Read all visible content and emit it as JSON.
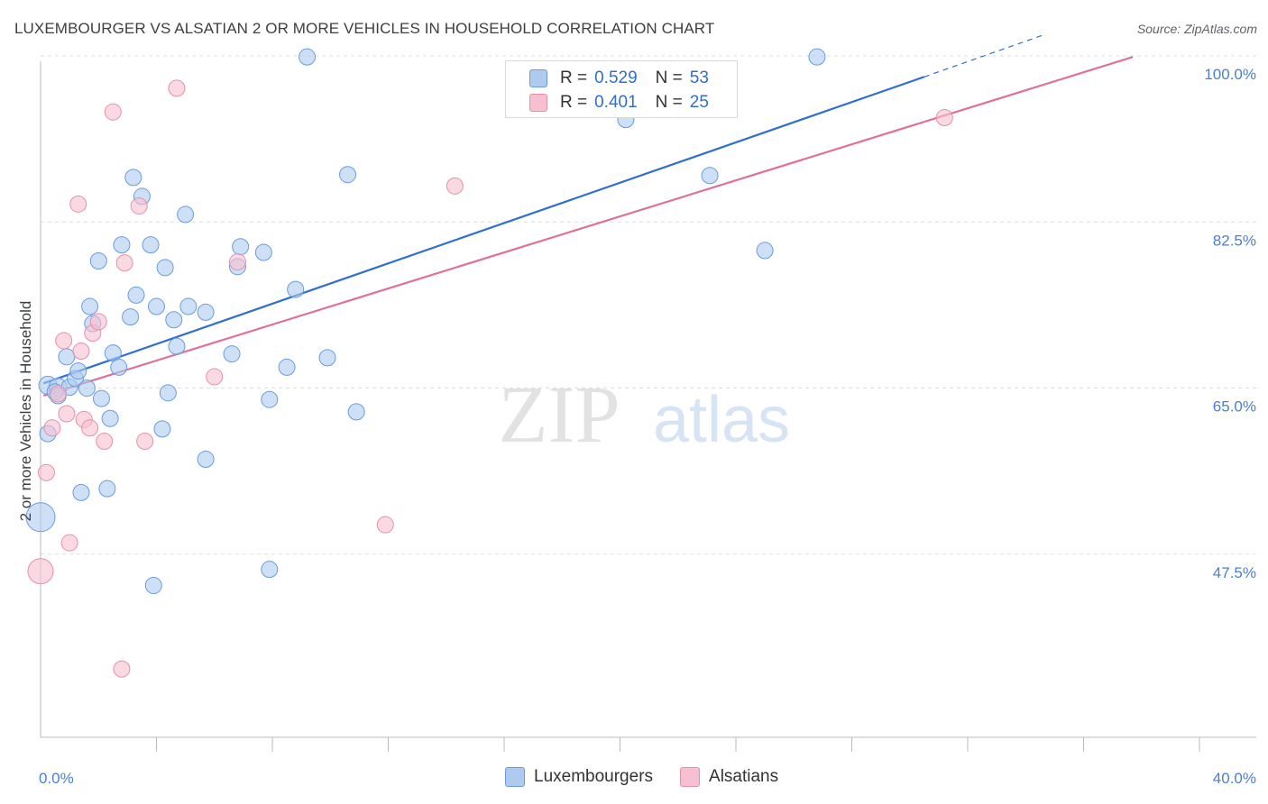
{
  "header": {
    "title": "LUXEMBOURGER VS ALSATIAN 2 OR MORE VEHICLES IN HOUSEHOLD CORRELATION CHART",
    "source": "Source: ZipAtlas.com"
  },
  "legend": {
    "rows": [
      {
        "r_label": "R =",
        "r_value": "0.529",
        "n_label": "N =",
        "n_value": "53"
      },
      {
        "r_label": "R =",
        "r_value": "0.401",
        "n_label": "N =",
        "n_value": "25"
      }
    ],
    "bottom": [
      "Luxembourgers",
      "Alsatians"
    ]
  },
  "watermark": {
    "zip": "ZIP",
    "atlas": "atlas"
  },
  "colors": {
    "blue_fill": "#aecbef",
    "blue_stroke": "#6a9be0",
    "blue_line": "#2f6fd0",
    "pink_fill": "#f8bfd0",
    "pink_stroke": "#e590aa",
    "pink_line": "#e0709a",
    "axis_text": "#4a7fd1",
    "grid": "#dddddd"
  },
  "chart_data": {
    "type": "scatter",
    "title": "LUXEMBOURGER VS ALSATIAN 2 OR MORE VEHICLES IN HOUSEHOLD CORRELATION CHART",
    "xlabel": "",
    "ylabel": "2 or more Vehicles in Household",
    "xlim": [
      0,
      40
    ],
    "ylim": [
      30,
      102
    ],
    "x_tick_labels": [
      "0.0%",
      "40.0%"
    ],
    "y_ticks": [
      47.5,
      65.0,
      82.5,
      100.0
    ],
    "y_tick_labels": [
      "47.5%",
      "65.0%",
      "82.5%",
      "100.0%"
    ],
    "grid": true,
    "legend_position": "top-center",
    "series": [
      {
        "name": "Luxembourgers",
        "color": "#6a9be0",
        "r": 0.529,
        "n": 53,
        "trend": {
          "x": [
            0.1,
            30.5
          ],
          "y": [
            67.3,
            99.6
          ],
          "dashed_to": [
            34.6,
            104.0
          ]
        },
        "points": [
          {
            "x": 0.25,
            "y": 67.1,
            "s": 10
          },
          {
            "x": 0.6,
            "y": 66.9,
            "s": 10
          },
          {
            "x": 0.9,
            "y": 70.1,
            "s": 9
          },
          {
            "x": 0.5,
            "y": 66.4,
            "s": 9
          },
          {
            "x": 1.0,
            "y": 66.9,
            "s": 9
          },
          {
            "x": 1.2,
            "y": 67.8,
            "s": 9
          },
          {
            "x": 1.3,
            "y": 68.6,
            "s": 9
          },
          {
            "x": 1.6,
            "y": 66.8,
            "s": 9
          },
          {
            "x": 1.7,
            "y": 75.4,
            "s": 9
          },
          {
            "x": 1.8,
            "y": 73.6,
            "s": 9
          },
          {
            "x": 2.0,
            "y": 80.2,
            "s": 9
          },
          {
            "x": 2.1,
            "y": 65.7,
            "s": 9
          },
          {
            "x": 2.4,
            "y": 63.6,
            "s": 9
          },
          {
            "x": 2.5,
            "y": 70.5,
            "s": 9
          },
          {
            "x": 2.7,
            "y": 69.0,
            "s": 9
          },
          {
            "x": 2.8,
            "y": 81.9,
            "s": 9
          },
          {
            "x": 3.1,
            "y": 74.3,
            "s": 9
          },
          {
            "x": 3.2,
            "y": 89.0,
            "s": 9
          },
          {
            "x": 3.3,
            "y": 76.6,
            "s": 9
          },
          {
            "x": 3.5,
            "y": 87.0,
            "s": 9
          },
          {
            "x": 3.8,
            "y": 81.9,
            "s": 9
          },
          {
            "x": 4.0,
            "y": 75.4,
            "s": 9
          },
          {
            "x": 4.2,
            "y": 62.5,
            "s": 9
          },
          {
            "x": 4.3,
            "y": 79.5,
            "s": 9
          },
          {
            "x": 4.4,
            "y": 66.3,
            "s": 9
          },
          {
            "x": 4.6,
            "y": 74.0,
            "s": 9
          },
          {
            "x": 4.7,
            "y": 71.2,
            "s": 9
          },
          {
            "x": 5.0,
            "y": 85.1,
            "s": 9
          },
          {
            "x": 5.1,
            "y": 75.4,
            "s": 9
          },
          {
            "x": 5.7,
            "y": 74.8,
            "s": 9
          },
          {
            "x": 5.7,
            "y": 59.3,
            "s": 9
          },
          {
            "x": 6.6,
            "y": 70.4,
            "s": 9
          },
          {
            "x": 6.8,
            "y": 79.6,
            "s": 9
          },
          {
            "x": 6.9,
            "y": 81.7,
            "s": 9
          },
          {
            "x": 7.7,
            "y": 81.1,
            "s": 9
          },
          {
            "x": 7.9,
            "y": 65.6,
            "s": 9
          },
          {
            "x": 8.5,
            "y": 69.0,
            "s": 9
          },
          {
            "x": 8.8,
            "y": 77.2,
            "s": 9
          },
          {
            "x": 9.2,
            "y": 101.7,
            "s": 9
          },
          {
            "x": 9.9,
            "y": 70.0,
            "s": 9
          },
          {
            "x": 10.6,
            "y": 89.3,
            "s": 9
          },
          {
            "x": 10.9,
            "y": 64.3,
            "s": 9
          },
          {
            "x": 1.4,
            "y": 55.8,
            "s": 9
          },
          {
            "x": 2.3,
            "y": 56.2,
            "s": 9
          },
          {
            "x": 3.9,
            "y": 46.0,
            "s": 9
          },
          {
            "x": 7.9,
            "y": 47.7,
            "s": 9
          },
          {
            "x": 0.25,
            "y": 62.0,
            "s": 9
          },
          {
            "x": 20.2,
            "y": 95.1,
            "s": 9
          },
          {
            "x": 23.1,
            "y": 89.2,
            "s": 9
          },
          {
            "x": 25.0,
            "y": 81.3,
            "s": 9
          },
          {
            "x": 26.8,
            "y": 101.7,
            "s": 9
          },
          {
            "x": 0.0,
            "y": 53.2,
            "s": 16
          },
          {
            "x": 0.6,
            "y": 66.0,
            "s": 9
          }
        ]
      },
      {
        "name": "Alsatians",
        "color": "#e590aa",
        "r": 0.401,
        "n": 25,
        "trend": {
          "x": [
            0.1,
            37.7
          ],
          "y": [
            66.0,
            101.7
          ]
        },
        "points": [
          {
            "x": 0.2,
            "y": 57.9,
            "s": 9
          },
          {
            "x": 0.4,
            "y": 62.6,
            "s": 9
          },
          {
            "x": 0.6,
            "y": 66.2,
            "s": 9
          },
          {
            "x": 0.8,
            "y": 71.8,
            "s": 9
          },
          {
            "x": 0.9,
            "y": 64.1,
            "s": 9
          },
          {
            "x": 1.0,
            "y": 50.5,
            "s": 9
          },
          {
            "x": 1.3,
            "y": 86.2,
            "s": 9
          },
          {
            "x": 1.4,
            "y": 70.7,
            "s": 9
          },
          {
            "x": 1.5,
            "y": 63.5,
            "s": 9
          },
          {
            "x": 1.7,
            "y": 62.6,
            "s": 9
          },
          {
            "x": 1.8,
            "y": 72.6,
            "s": 9
          },
          {
            "x": 2.0,
            "y": 73.8,
            "s": 9
          },
          {
            "x": 2.2,
            "y": 61.2,
            "s": 9
          },
          {
            "x": 2.5,
            "y": 95.9,
            "s": 9
          },
          {
            "x": 2.9,
            "y": 80.0,
            "s": 9
          },
          {
            "x": 3.4,
            "y": 86.0,
            "s": 9
          },
          {
            "x": 3.6,
            "y": 61.2,
            "s": 9
          },
          {
            "x": 4.7,
            "y": 98.4,
            "s": 9
          },
          {
            "x": 6.0,
            "y": 68.0,
            "s": 9
          },
          {
            "x": 6.8,
            "y": 80.1,
            "s": 9
          },
          {
            "x": 2.8,
            "y": 37.2,
            "s": 9
          },
          {
            "x": 11.9,
            "y": 52.4,
            "s": 9
          },
          {
            "x": 14.3,
            "y": 88.1,
            "s": 9
          },
          {
            "x": 31.2,
            "y": 95.3,
            "s": 9
          },
          {
            "x": 0.0,
            "y": 47.5,
            "s": 14
          }
        ]
      }
    ]
  }
}
